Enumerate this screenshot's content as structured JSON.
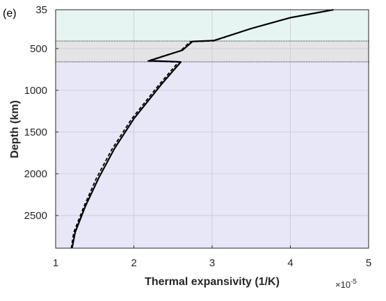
{
  "chart_data": {
    "type": "line",
    "panel_label": "(e)",
    "xlabel": "Thermal expansivity (1/K)",
    "ylabel": "Depth (km)",
    "x_exponent_label": "×10",
    "x_exponent_power": "-5",
    "xlim": [
      1,
      5
    ],
    "ylim": [
      35,
      2891
    ],
    "y_reversed": true,
    "x_ticks": [
      1,
      2,
      3,
      4,
      5
    ],
    "x_tick_labels": [
      "1",
      "2",
      "3",
      "4",
      "5"
    ],
    "y_ticks": [
      35,
      500,
      1000,
      1500,
      2000,
      2500
    ],
    "y_tick_labels": [
      "35",
      "500",
      "1000",
      "1500",
      "2000",
      "2500"
    ],
    "grid": true,
    "bands": [
      {
        "from": 35,
        "to": 410,
        "color": "#e6f4f2"
      },
      {
        "from": 410,
        "to": 660,
        "color": "#e4e4e6"
      },
      {
        "from": 660,
        "to": 2891,
        "color": "#e8e7f8"
      }
    ],
    "boundaries": [
      410,
      660
    ],
    "series": [
      {
        "style": "solid",
        "color": "#000000",
        "points": [
          [
            4.55,
            35
          ],
          [
            4.0,
            130
          ],
          [
            3.5,
            260
          ],
          [
            3.02,
            405
          ],
          [
            2.75,
            415
          ],
          [
            2.62,
            520
          ],
          [
            2.2,
            645
          ],
          [
            2.6,
            660
          ],
          [
            2.35,
            930
          ],
          [
            2.0,
            1340
          ],
          [
            1.75,
            1700
          ],
          [
            1.55,
            2050
          ],
          [
            1.38,
            2390
          ],
          [
            1.25,
            2700
          ],
          [
            1.21,
            2891
          ]
        ]
      },
      {
        "style": "dashed",
        "color": "#000000",
        "points": [
          [
            4.55,
            35
          ],
          [
            4.0,
            130
          ],
          [
            3.5,
            260
          ],
          [
            3.02,
            408
          ],
          [
            2.72,
            418
          ],
          [
            2.6,
            525
          ],
          [
            2.18,
            648
          ],
          [
            2.57,
            662
          ],
          [
            2.32,
            935
          ],
          [
            1.97,
            1345
          ],
          [
            1.72,
            1705
          ],
          [
            1.52,
            2055
          ],
          [
            1.36,
            2395
          ],
          [
            1.23,
            2705
          ],
          [
            1.2,
            2891
          ]
        ]
      }
    ]
  }
}
